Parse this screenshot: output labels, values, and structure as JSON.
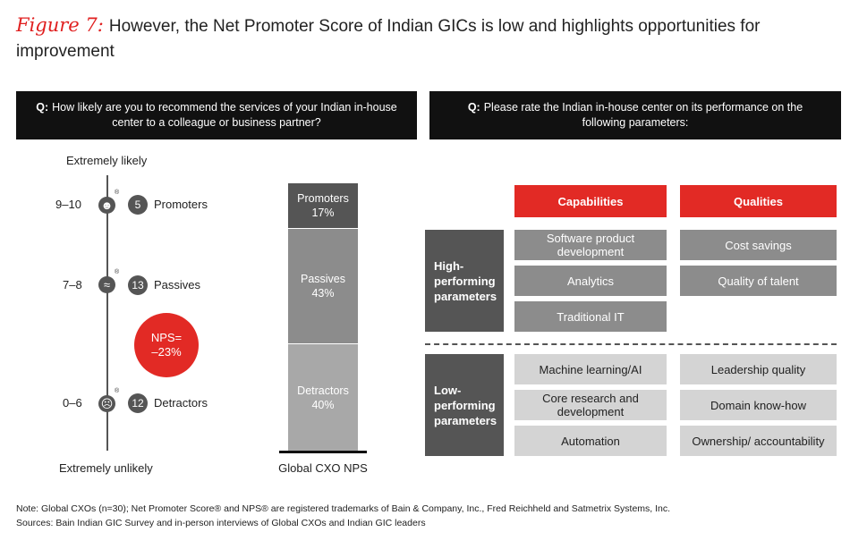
{
  "title": {
    "figure_label": "Figure 7:",
    "text": "However, the Net Promoter Score of Indian GICs is low and highlights opportunities for improvement"
  },
  "left_question": {
    "prefix": "Q:",
    "text": "How likely are you to recommend the services of your Indian in-house center to a colleague or business partner?"
  },
  "right_question": {
    "prefix": "Q:",
    "text": "Please rate the Indian in-house center on its performance on the following parameters:"
  },
  "scale": {
    "top_label": "Extremely likely",
    "bottom_label": "Extremely unlikely",
    "registered_mark": "®",
    "groups": [
      {
        "range": "9–10",
        "count": "5",
        "name": "Promoters",
        "face": "☻"
      },
      {
        "range": "7–8",
        "count": "13",
        "name": "Passives",
        "face": "≈"
      },
      {
        "range": "0–6",
        "count": "12",
        "name": "Detractors",
        "face": "☹"
      }
    ],
    "nps_label": "NPS=",
    "nps_value": "–23%"
  },
  "chart_data": {
    "type": "bar",
    "stacked": true,
    "categories": [
      "Global CXO NPS"
    ],
    "series": [
      {
        "name": "Promoters",
        "values": [
          17
        ],
        "label": "17%",
        "color": "#555555"
      },
      {
        "name": "Passives",
        "values": [
          43
        ],
        "label": "43%",
        "color": "#8c8c8c"
      },
      {
        "name": "Detractors",
        "values": [
          40
        ],
        "label": "40%",
        "color": "#a8a8a8"
      }
    ],
    "ylim": [
      0,
      100
    ],
    "title": "",
    "xlabel": "",
    "ylabel": ""
  },
  "matrix": {
    "columns": [
      "Capabilities",
      "Qualities"
    ],
    "high": {
      "label_lines": [
        "High-",
        "performing",
        "parameters"
      ],
      "capabilities": [
        "Software product development",
        "Analytics",
        "Traditional IT"
      ],
      "qualities": [
        "Cost savings",
        "Quality of talent"
      ]
    },
    "low": {
      "label_lines": [
        "Low-",
        "performing",
        "parameters"
      ],
      "capabilities": [
        "Machine learning/AI",
        "Core research and development",
        "Automation"
      ],
      "qualities": [
        "Leadership quality",
        "Domain know-how",
        "Ownership/ accountability"
      ]
    }
  },
  "notes": {
    "note": "Note: Global CXOs (n=30); Net Promoter Score® and NPS® are registered trademarks of Bain & Company, Inc., Fred Reichheld and Satmetrix Systems, Inc.",
    "sources": "Sources: Bain Indian GIC Survey and in-person interviews of Global CXOs and Indian GIC leaders"
  }
}
